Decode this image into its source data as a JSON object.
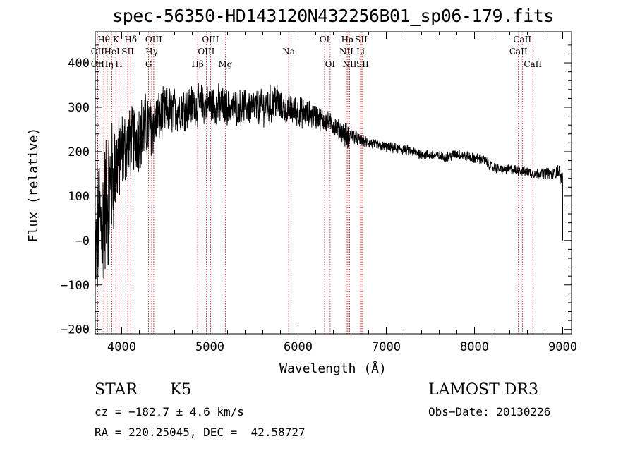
{
  "chart_data": {
    "type": "line",
    "title": "spec-56350-HD143120N432256B01_sp06-179.fits",
    "xlabel": "Wavelength (Å)",
    "ylabel": "Flux (relative)",
    "xlim": [
      3700,
      9100
    ],
    "ylim": [
      -210,
      470
    ],
    "x_ticks": [
      4000,
      5000,
      6000,
      7000,
      8000,
      9000
    ],
    "x_tick_labels": [
      "4000",
      "5000",
      "6000",
      "7000",
      "8000",
      "9000"
    ],
    "y_ticks": [
      -200,
      -100,
      0,
      100,
      200,
      300,
      400
    ],
    "y_tick_labels": [
      "−200",
      "−100",
      "−0",
      "100",
      "200",
      "300",
      "400"
    ],
    "series": [
      {
        "name": "flux",
        "x": [
          3700,
          3725,
          3750,
          3775,
          3800,
          3825,
          3850,
          3875,
          3900,
          3925,
          3950,
          3975,
          4000,
          4050,
          4100,
          4150,
          4200,
          4250,
          4300,
          4350,
          4400,
          4450,
          4500,
          4600,
          4700,
          4800,
          4900,
          5000,
          5100,
          5200,
          5300,
          5400,
          5500,
          5600,
          5700,
          5750,
          5800,
          5900,
          6000,
          6100,
          6200,
          6300,
          6400,
          6500,
          6560,
          6600,
          6700,
          6800,
          6900,
          7000,
          7100,
          7200,
          7300,
          7400,
          7500,
          7600,
          7700,
          7800,
          7900,
          8000,
          8100,
          8200,
          8300,
          8400,
          8500,
          8600,
          8700,
          8800,
          8900,
          8950,
          9000
        ],
        "y": [
          -50,
          0,
          40,
          20,
          60,
          80,
          100,
          120,
          140,
          160,
          180,
          190,
          200,
          210,
          220,
          230,
          240,
          250,
          255,
          260,
          270,
          280,
          290,
          295,
          300,
          305,
          305,
          305,
          305,
          300,
          300,
          300,
          300,
          300,
          305,
          320,
          300,
          295,
          290,
          285,
          280,
          270,
          260,
          245,
          230,
          240,
          225,
          220,
          215,
          210,
          208,
          205,
          200,
          195,
          192,
          190,
          188,
          195,
          190,
          185,
          183,
          165,
          160,
          160,
          158,
          155,
          150,
          152,
          150,
          158,
          130
        ],
        "noise": [
          120,
          130,
          140,
          150,
          150,
          150,
          140,
          130,
          120,
          110,
          100,
          90,
          80,
          75,
          70,
          70,
          70,
          70,
          70,
          60,
          55,
          50,
          50,
          45,
          45,
          40,
          40,
          40,
          40,
          35,
          35,
          35,
          35,
          35,
          40,
          40,
          30,
          30,
          30,
          28,
          25,
          22,
          20,
          18,
          30,
          15,
          12,
          12,
          10,
          10,
          10,
          10,
          10,
          10,
          10,
          10,
          10,
          10,
          10,
          10,
          10,
          10,
          10,
          10,
          10,
          10,
          10,
          10,
          12,
          15,
          20
        ]
      }
    ],
    "lines": [
      {
        "label": "Hθ",
        "x": 3797,
        "row": 0
      },
      {
        "label": "Hη",
        "x": 3835,
        "row": 2
      },
      {
        "label": "OII",
        "x": 3727,
        "row": 2
      },
      {
        "label": "OII",
        "x": 3727,
        "row": 1
      },
      {
        "label": "HeI",
        "x": 3889,
        "row": 1
      },
      {
        "label": "K",
        "x": 3934,
        "row": 0
      },
      {
        "label": "H",
        "x": 3969,
        "row": 2
      },
      {
        "label": "Hδ",
        "x": 4102,
        "row": 0
      },
      {
        "label": "SII",
        "x": 4069,
        "row": 1
      },
      {
        "label": "OIII",
        "x": 4363,
        "row": 0
      },
      {
        "label": "Hγ",
        "x": 4340,
        "row": 1
      },
      {
        "label": "G",
        "x": 4305,
        "row": 2
      },
      {
        "label": "Hβ",
        "x": 4861,
        "row": 2
      },
      {
        "label": "OIII",
        "x": 5007,
        "row": 0
      },
      {
        "label": "OIII",
        "x": 4959,
        "row": 1
      },
      {
        "label": "Mg",
        "x": 5175,
        "row": 2
      },
      {
        "label": "Na",
        "x": 5893,
        "row": 1
      },
      {
        "label": "OI",
        "x": 6300,
        "row": 0
      },
      {
        "label": "OI",
        "x": 6363,
        "row": 2
      },
      {
        "label": "Hα",
        "x": 6563,
        "row": 0
      },
      {
        "label": "NII",
        "x": 6548,
        "row": 1
      },
      {
        "label": "NII",
        "x": 6584,
        "row": 2
      },
      {
        "label": "SII",
        "x": 6716,
        "row": 0
      },
      {
        "label": "Li",
        "x": 6708,
        "row": 1
      },
      {
        "label": "SII",
        "x": 6731,
        "row": 2
      },
      {
        "label": "CaII",
        "x": 8542,
        "row": 0
      },
      {
        "label": "CaII",
        "x": 8498,
        "row": 1
      },
      {
        "label": "CaII",
        "x": 8662,
        "row": 2
      }
    ]
  },
  "info": {
    "object_type": "STAR",
    "subclass": "K5",
    "survey": "LAMOST DR3",
    "redshift": "cz = −182.7 ± 4.6 km/s",
    "obs_date": "Obs−Date: 20130226",
    "coords": "RA = 220.25045, DEC =  42.58727"
  },
  "colors": {
    "spectrum": "#000000",
    "line_markers": "#c00000",
    "axes": "#000000"
  }
}
